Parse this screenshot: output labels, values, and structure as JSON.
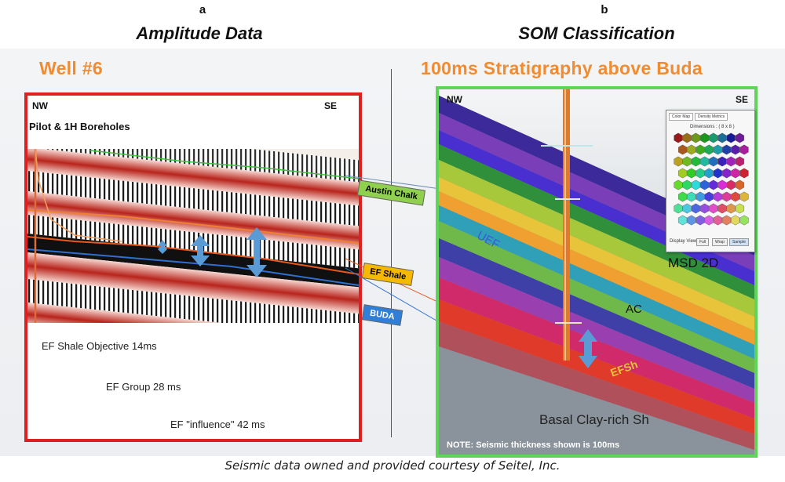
{
  "panels": {
    "a": {
      "letter": "a",
      "title": "Amplitude Data"
    },
    "b": {
      "letter": "b",
      "title": "SOM Classification"
    }
  },
  "left": {
    "heading": "Well #6",
    "nw": "NW",
    "se": "SE",
    "boreholes": "Pilot &  1H Boreholes",
    "notes": [
      "EF Shale Objective 14ms",
      "EF Group 28 ms",
      "EF \"influence\" 42 ms"
    ]
  },
  "tags": {
    "austin_chalk": "Austin Chalk",
    "ef_shale": "EF Shale",
    "buda": "BUDA"
  },
  "right": {
    "heading": "100ms Stratigraphy above Buda",
    "nw": "NW",
    "se": "SE",
    "uef": "UEF",
    "ac": "AC",
    "efsh": "EFSh",
    "basal": "Basal Clay-rich Sh",
    "msd": "MSD 2D",
    "note": "NOTE:   Seismic thickness shown is 100ms"
  },
  "som_panel": {
    "tab1": "Color Map",
    "tab2": "Density Metrics",
    "dimensions": "Dimensions : ( 8 x 8 )",
    "footer_label": "Display View",
    "buttons": [
      "Full",
      "Wrap",
      "Sample"
    ]
  },
  "caption": "Seismic data owned and provided courtesy of Seitel, Inc.",
  "colors": {
    "accent_orange": "#f28b2f",
    "left_frame": "#e02020",
    "right_frame": "#5fd35a",
    "austin_chalk_tag": "#8fd14f",
    "ef_shale_tag": "#f6b800",
    "buda_tag": "#2f7fd8",
    "arrow_blue": "#5b9bd5"
  }
}
